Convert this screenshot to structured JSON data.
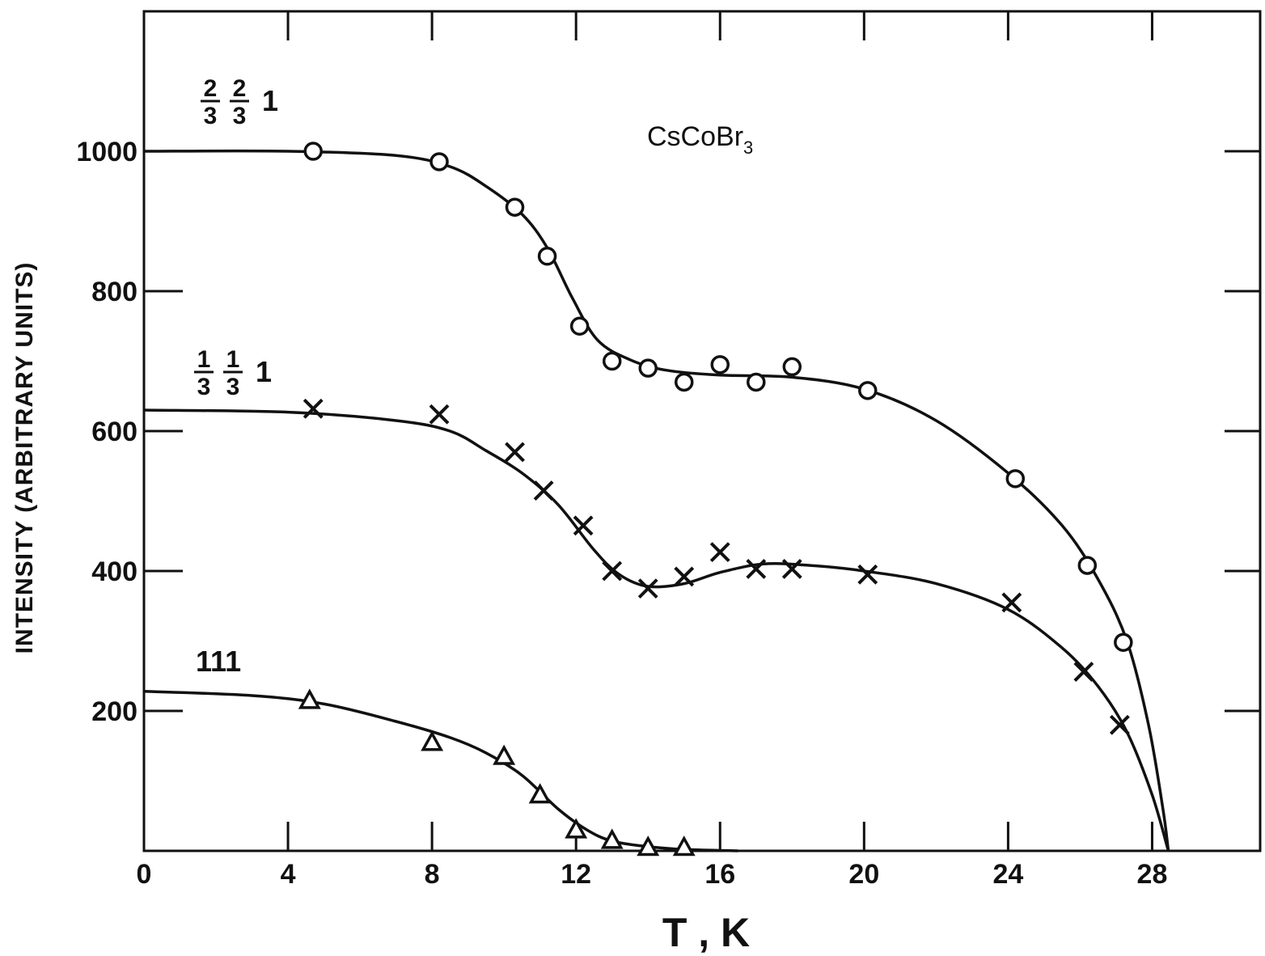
{
  "chart_data": {
    "type": "scatter",
    "title": "CsCoBr",
    "title_subscript": "3",
    "xlabel": "T , K",
    "ylabel": "INTENSITY (ARBITRARY UNITS)",
    "xlim": [
      0,
      31
    ],
    "ylim": [
      0,
      1200
    ],
    "x_ticks": [
      0,
      4,
      8,
      12,
      16,
      20,
      24,
      28
    ],
    "y_ticks": [
      200,
      400,
      600,
      800,
      1000
    ],
    "x_tick_labels": [
      "0",
      "4",
      "8",
      "12",
      "16",
      "20",
      "24",
      "28"
    ],
    "y_tick_labels": [
      "200",
      "400",
      "600",
      "800",
      "1000"
    ],
    "grid": false,
    "series": [
      {
        "label_whole": "1",
        "label_fracs": [
          {
            "num": "2",
            "den": "3"
          },
          {
            "num": "2",
            "den": "3"
          }
        ],
        "marker": "circle",
        "points": [
          [
            4.7,
            1000
          ],
          [
            8.2,
            985
          ],
          [
            10.3,
            920
          ],
          [
            11.2,
            850
          ],
          [
            12.1,
            750
          ],
          [
            13.0,
            700
          ],
          [
            14.0,
            690
          ],
          [
            15.0,
            670
          ],
          [
            16.0,
            695
          ],
          [
            17.0,
            670
          ],
          [
            18.0,
            692
          ],
          [
            20.1,
            658
          ],
          [
            24.2,
            532
          ],
          [
            26.2,
            408
          ],
          [
            27.2,
            298
          ]
        ],
        "curve": [
          [
            0,
            1000
          ],
          [
            4,
            1000
          ],
          [
            7,
            994
          ],
          [
            8.5,
            978
          ],
          [
            9.5,
            950
          ],
          [
            10.5,
            910
          ],
          [
            11.2,
            862
          ],
          [
            11.9,
            790
          ],
          [
            12.6,
            730
          ],
          [
            13.5,
            702
          ],
          [
            14.5,
            687
          ],
          [
            16,
            680
          ],
          [
            18,
            677
          ],
          [
            20,
            660
          ],
          [
            22,
            615
          ],
          [
            24,
            540
          ],
          [
            25.5,
            465
          ],
          [
            26.5,
            388
          ],
          [
            27.3,
            300
          ],
          [
            27.9,
            180
          ],
          [
            28.3,
            60
          ],
          [
            28.45,
            0
          ]
        ]
      },
      {
        "label_whole": "1",
        "label_fracs": [
          {
            "num": "1",
            "den": "3"
          },
          {
            "num": "1",
            "den": "3"
          }
        ],
        "marker": "cross",
        "points": [
          [
            4.7,
            632
          ],
          [
            8.2,
            624
          ],
          [
            10.3,
            570
          ],
          [
            11.1,
            515
          ],
          [
            12.2,
            465
          ],
          [
            13.0,
            400
          ],
          [
            14.0,
            375
          ],
          [
            15.0,
            392
          ],
          [
            16.0,
            427
          ],
          [
            17.0,
            403
          ],
          [
            18.0,
            403
          ],
          [
            20.1,
            395
          ],
          [
            24.1,
            355
          ],
          [
            26.1,
            256
          ],
          [
            27.1,
            180
          ]
        ],
        "curve": [
          [
            0,
            630
          ],
          [
            4,
            627
          ],
          [
            7,
            615
          ],
          [
            8.5,
            600
          ],
          [
            9.5,
            572
          ],
          [
            10.5,
            540
          ],
          [
            11.5,
            495
          ],
          [
            12.5,
            430
          ],
          [
            13.2,
            395
          ],
          [
            14,
            378
          ],
          [
            15,
            382
          ],
          [
            16,
            398
          ],
          [
            17.2,
            410
          ],
          [
            18.5,
            408
          ],
          [
            20,
            400
          ],
          [
            22,
            382
          ],
          [
            24,
            345
          ],
          [
            25.5,
            290
          ],
          [
            26.5,
            235
          ],
          [
            27.3,
            170
          ],
          [
            28.0,
            80
          ],
          [
            28.45,
            0
          ]
        ]
      },
      {
        "label_whole": "111",
        "label_fracs": [],
        "marker": "triangle",
        "points": [
          [
            4.6,
            215
          ],
          [
            8.0,
            155
          ],
          [
            10.0,
            135
          ],
          [
            11.0,
            80
          ],
          [
            12.0,
            30
          ],
          [
            13.0,
            15
          ],
          [
            14.0,
            5
          ],
          [
            15.0,
            5
          ]
        ],
        "curve": [
          [
            0,
            228
          ],
          [
            3,
            222
          ],
          [
            5,
            210
          ],
          [
            7,
            185
          ],
          [
            8.5,
            162
          ],
          [
            9.5,
            140
          ],
          [
            10.5,
            108
          ],
          [
            11.5,
            60
          ],
          [
            12.3,
            30
          ],
          [
            13,
            14
          ],
          [
            14,
            6
          ],
          [
            15,
            2
          ],
          [
            16.5,
            0
          ]
        ]
      }
    ]
  }
}
